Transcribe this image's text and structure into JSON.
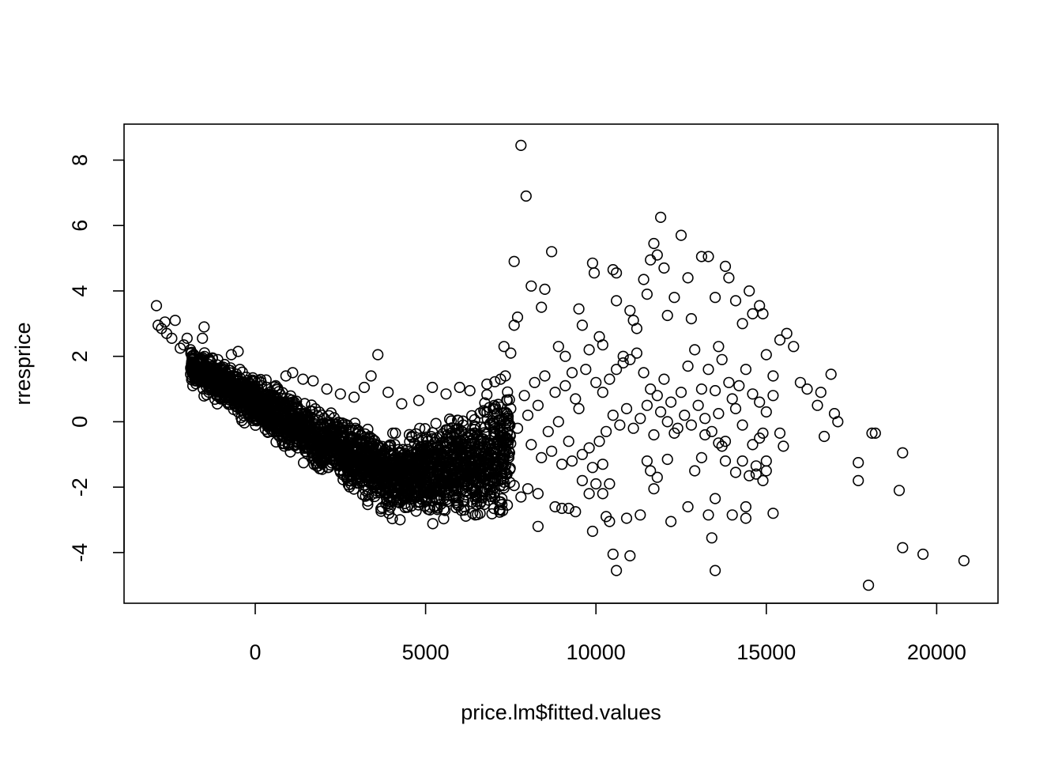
{
  "chart_data": {
    "type": "scatter",
    "title": "",
    "xlabel": "price.lm$fitted.values",
    "ylabel": "rresprice",
    "xlim": [
      -3850,
      21800
    ],
    "ylim": [
      -5.55,
      9.1
    ],
    "x_ticks": [
      0,
      5000,
      10000,
      15000,
      20000
    ],
    "x_tick_labels": [
      "0",
      "5000",
      "10000",
      "15000",
      "20000"
    ],
    "y_ticks": [
      -4,
      -2,
      0,
      2,
      4,
      6,
      8
    ],
    "y_tick_labels": [
      "-4",
      "-2",
      "0",
      "2",
      "4",
      "6",
      "8"
    ],
    "grid": false,
    "legend": "none",
    "marker": "open-circle",
    "points": [
      [
        -2900,
        3.55
      ],
      [
        -2850,
        2.95
      ],
      [
        -2750,
        2.85
      ],
      [
        -2650,
        3.05
      ],
      [
        -2600,
        2.7
      ],
      [
        -2450,
        2.55
      ],
      [
        -2350,
        3.1
      ],
      [
        -2200,
        2.25
      ],
      [
        -2100,
        2.35
      ],
      [
        -2000,
        2.55
      ],
      [
        -1900,
        2.2
      ],
      [
        -1800,
        2.05
      ],
      [
        -1500,
        2.9
      ],
      [
        -1550,
        2.55
      ],
      [
        -1100,
        1.9
      ],
      [
        -900,
        1.75
      ],
      [
        -700,
        2.05
      ],
      [
        -500,
        2.15
      ],
      [
        -450,
        1.6
      ],
      [
        -200,
        1.2
      ],
      [
        100,
        1.25
      ],
      [
        350,
        1.05
      ],
      [
        600,
        1.1
      ],
      [
        900,
        1.4
      ],
      [
        1100,
        1.5
      ],
      [
        1400,
        1.3
      ],
      [
        1700,
        1.25
      ],
      [
        2100,
        1.0
      ],
      [
        2500,
        0.85
      ],
      [
        2900,
        0.75
      ],
      [
        3200,
        1.05
      ],
      [
        3400,
        1.4
      ],
      [
        3600,
        2.05
      ],
      [
        3900,
        0.9
      ],
      [
        4300,
        0.55
      ],
      [
        4800,
        0.65
      ],
      [
        5200,
        1.05
      ],
      [
        5600,
        0.85
      ],
      [
        6000,
        1.05
      ],
      [
        6300,
        0.95
      ],
      [
        6800,
        1.15
      ],
      [
        7200,
        1.3
      ],
      [
        7300,
        2.3
      ],
      [
        7500,
        2.1
      ],
      [
        7600,
        2.95
      ],
      [
        7700,
        3.2
      ],
      [
        7600,
        4.9
      ],
      [
        7800,
        8.45
      ],
      [
        7950,
        6.9
      ],
      [
        8100,
        4.15
      ],
      [
        8400,
        3.5
      ],
      [
        8500,
        4.05
      ],
      [
        8700,
        5.2
      ],
      [
        8900,
        2.3
      ],
      [
        9100,
        2.0
      ],
      [
        9300,
        1.5
      ],
      [
        9500,
        3.45
      ],
      [
        9600,
        2.95
      ],
      [
        9800,
        2.2
      ],
      [
        9900,
        4.85
      ],
      [
        9950,
        4.55
      ],
      [
        10100,
        2.6
      ],
      [
        10200,
        2.35
      ],
      [
        10500,
        4.65
      ],
      [
        10600,
        4.55
      ],
      [
        10600,
        3.7
      ],
      [
        10800,
        2.0
      ],
      [
        11000,
        3.4
      ],
      [
        11100,
        3.1
      ],
      [
        11200,
        2.85
      ],
      [
        11400,
        4.35
      ],
      [
        11500,
        3.9
      ],
      [
        11600,
        4.95
      ],
      [
        11700,
        5.45
      ],
      [
        11800,
        5.1
      ],
      [
        11900,
        6.25
      ],
      [
        12000,
        4.7
      ],
      [
        12100,
        3.25
      ],
      [
        12300,
        3.8
      ],
      [
        12500,
        5.7
      ],
      [
        12700,
        4.4
      ],
      [
        12800,
        3.15
      ],
      [
        13100,
        5.05
      ],
      [
        13300,
        5.05
      ],
      [
        13500,
        3.8
      ],
      [
        13600,
        2.3
      ],
      [
        13800,
        4.75
      ],
      [
        13900,
        4.4
      ],
      [
        14100,
        3.7
      ],
      [
        14300,
        3.0
      ],
      [
        14500,
        4.0
      ],
      [
        14600,
        3.3
      ],
      [
        14800,
        3.55
      ],
      [
        14900,
        3.3
      ],
      [
        15000,
        2.05
      ],
      [
        15200,
        1.4
      ],
      [
        15400,
        2.5
      ],
      [
        15600,
        2.7
      ],
      [
        15800,
        2.3
      ],
      [
        16000,
        1.2
      ],
      [
        16200,
        1.0
      ],
      [
        16500,
        0.5
      ],
      [
        16600,
        0.9
      ],
      [
        16700,
        -0.45
      ],
      [
        16900,
        1.45
      ],
      [
        17000,
        0.25
      ],
      [
        17100,
        0.0
      ],
      [
        -1200,
        1.3
      ],
      [
        -800,
        1.0
      ],
      [
        -300,
        0.8
      ],
      [
        0,
        0.5
      ],
      [
        300,
        0.3
      ],
      [
        600,
        0.1
      ],
      [
        900,
        -0.1
      ],
      [
        1200,
        -0.25
      ],
      [
        1500,
        -0.4
      ],
      [
        1800,
        -0.5
      ],
      [
        2200,
        -0.65
      ],
      [
        2600,
        -0.75
      ],
      [
        3000,
        -0.85
      ],
      [
        3400,
        -0.9
      ],
      [
        3800,
        -0.95
      ],
      [
        4200,
        -0.95
      ],
      [
        4600,
        -0.95
      ],
      [
        5000,
        -0.9
      ],
      [
        5400,
        -0.85
      ],
      [
        5800,
        -0.8
      ],
      [
        6200,
        -0.75
      ],
      [
        6600,
        -0.7
      ],
      [
        7000,
        -0.65
      ],
      [
        7400,
        -0.55
      ],
      [
        2000,
        -0.95
      ],
      [
        2600,
        -1.05
      ],
      [
        3200,
        -1.15
      ],
      [
        3800,
        -1.35
      ],
      [
        4200,
        -1.45
      ],
      [
        4600,
        -1.5
      ],
      [
        5000,
        -1.35
      ],
      [
        5600,
        -1.55
      ],
      [
        6000,
        -1.7
      ],
      [
        6400,
        -1.75
      ],
      [
        6700,
        -1.6
      ],
      [
        7000,
        -1.8
      ],
      [
        7300,
        -1.85
      ],
      [
        7600,
        -1.95
      ],
      [
        8000,
        -2.05
      ],
      [
        8300,
        -2.2
      ],
      [
        5800,
        -2.3
      ],
      [
        6600,
        -2.5
      ],
      [
        6600,
        -2.8
      ],
      [
        7200,
        -2.45
      ],
      [
        7400,
        -2.55
      ],
      [
        7800,
        -2.3
      ],
      [
        8300,
        -3.2
      ],
      [
        8800,
        -2.6
      ],
      [
        9000,
        -2.65
      ],
      [
        9200,
        -2.65
      ],
      [
        9400,
        -2.75
      ],
      [
        9600,
        -1.8
      ],
      [
        9800,
        -2.2
      ],
      [
        10000,
        -1.9
      ],
      [
        10200,
        -2.2
      ],
      [
        10400,
        -1.9
      ],
      [
        9900,
        -3.35
      ],
      [
        10300,
        -2.9
      ],
      [
        10400,
        -3.05
      ],
      [
        10900,
        -2.95
      ],
      [
        11300,
        -2.85
      ],
      [
        10500,
        -4.05
      ],
      [
        10600,
        -4.55
      ],
      [
        11000,
        -4.1
      ],
      [
        11500,
        -1.2
      ],
      [
        11600,
        -1.5
      ],
      [
        11700,
        -2.05
      ],
      [
        11800,
        -1.7
      ],
      [
        12100,
        -1.15
      ],
      [
        12300,
        -0.35
      ],
      [
        12200,
        -3.05
      ],
      [
        12700,
        -2.6
      ],
      [
        12900,
        -1.5
      ],
      [
        13100,
        -1.1
      ],
      [
        13200,
        -0.4
      ],
      [
        13300,
        -2.85
      ],
      [
        13400,
        -3.55
      ],
      [
        13500,
        -2.35
      ],
      [
        13500,
        -4.55
      ],
      [
        13600,
        -0.65
      ],
      [
        13700,
        -0.75
      ],
      [
        13800,
        -1.2
      ],
      [
        14000,
        -2.85
      ],
      [
        14100,
        -1.55
      ],
      [
        14300,
        -1.2
      ],
      [
        14400,
        -2.6
      ],
      [
        14400,
        -2.95
      ],
      [
        14500,
        -1.65
      ],
      [
        14700,
        -1.6
      ],
      [
        14700,
        -1.35
      ],
      [
        14800,
        -0.5
      ],
      [
        14900,
        -1.8
      ],
      [
        15000,
        -1.5
      ],
      [
        15000,
        -1.2
      ],
      [
        15200,
        -2.8
      ],
      [
        15500,
        -0.75
      ],
      [
        17700,
        -1.25
      ],
      [
        17700,
        -1.8
      ],
      [
        18100,
        -0.35
      ],
      [
        18200,
        -0.35
      ],
      [
        18000,
        -5.0
      ],
      [
        18900,
        -2.1
      ],
      [
        19000,
        -0.95
      ],
      [
        19000,
        -3.85
      ],
      [
        19600,
        -4.05
      ],
      [
        20800,
        -4.25
      ],
      [
        10000,
        1.2
      ],
      [
        10200,
        0.9
      ],
      [
        10400,
        1.3
      ],
      [
        10600,
        1.6
      ],
      [
        10800,
        1.8
      ],
      [
        11000,
        1.9
      ],
      [
        11200,
        2.1
      ],
      [
        11400,
        1.5
      ],
      [
        11600,
        1.0
      ],
      [
        11800,
        0.8
      ],
      [
        12000,
        1.3
      ],
      [
        12200,
        0.6
      ],
      [
        12500,
        0.9
      ],
      [
        12700,
        1.7
      ],
      [
        12900,
        2.2
      ],
      [
        13100,
        1.0
      ],
      [
        13300,
        1.6
      ],
      [
        13500,
        0.95
      ],
      [
        13700,
        1.9
      ],
      [
        13900,
        1.2
      ],
      [
        14000,
        0.7
      ],
      [
        14200,
        1.1
      ],
      [
        14400,
        1.6
      ],
      [
        14600,
        0.85
      ],
      [
        14800,
        0.6
      ],
      [
        15000,
        0.3
      ],
      [
        15200,
        0.8
      ],
      [
        15400,
        -0.35
      ],
      [
        10100,
        -0.6
      ],
      [
        10300,
        -0.3
      ],
      [
        10500,
        0.2
      ],
      [
        10700,
        -0.1
      ],
      [
        10900,
        0.4
      ],
      [
        11100,
        -0.2
      ],
      [
        11300,
        0.1
      ],
      [
        11500,
        0.5
      ],
      [
        11700,
        -0.4
      ],
      [
        11900,
        0.3
      ],
      [
        12100,
        0.0
      ],
      [
        12400,
        -0.2
      ],
      [
        12600,
        0.2
      ],
      [
        12800,
        -0.1
      ],
      [
        13000,
        0.5
      ],
      [
        13200,
        0.1
      ],
      [
        13400,
        -0.3
      ],
      [
        13600,
        0.25
      ],
      [
        13800,
        -0.6
      ],
      [
        14100,
        0.4
      ],
      [
        14300,
        -0.1
      ],
      [
        14600,
        -0.7
      ],
      [
        14900,
        -0.35
      ],
      [
        8000,
        0.2
      ],
      [
        8300,
        0.5
      ],
      [
        8600,
        -0.3
      ],
      [
        8900,
        0.0
      ],
      [
        9200,
        -0.6
      ],
      [
        9500,
        0.4
      ],
      [
        9800,
        -0.8
      ],
      [
        8200,
        1.2
      ],
      [
        8500,
        1.4
      ],
      [
        8800,
        0.9
      ],
      [
        9100,
        1.1
      ],
      [
        9400,
        0.7
      ],
      [
        9700,
        1.6
      ],
      [
        7500,
        0.4
      ],
      [
        7700,
        -0.2
      ],
      [
        7900,
        0.8
      ],
      [
        8100,
        -0.7
      ],
      [
        8400,
        -1.1
      ],
      [
        8700,
        -0.9
      ],
      [
        9000,
        -1.3
      ],
      [
        9300,
        -1.2
      ],
      [
        9600,
        -1.0
      ],
      [
        9900,
        -1.4
      ],
      [
        10200,
        -1.3
      ]
    ]
  }
}
